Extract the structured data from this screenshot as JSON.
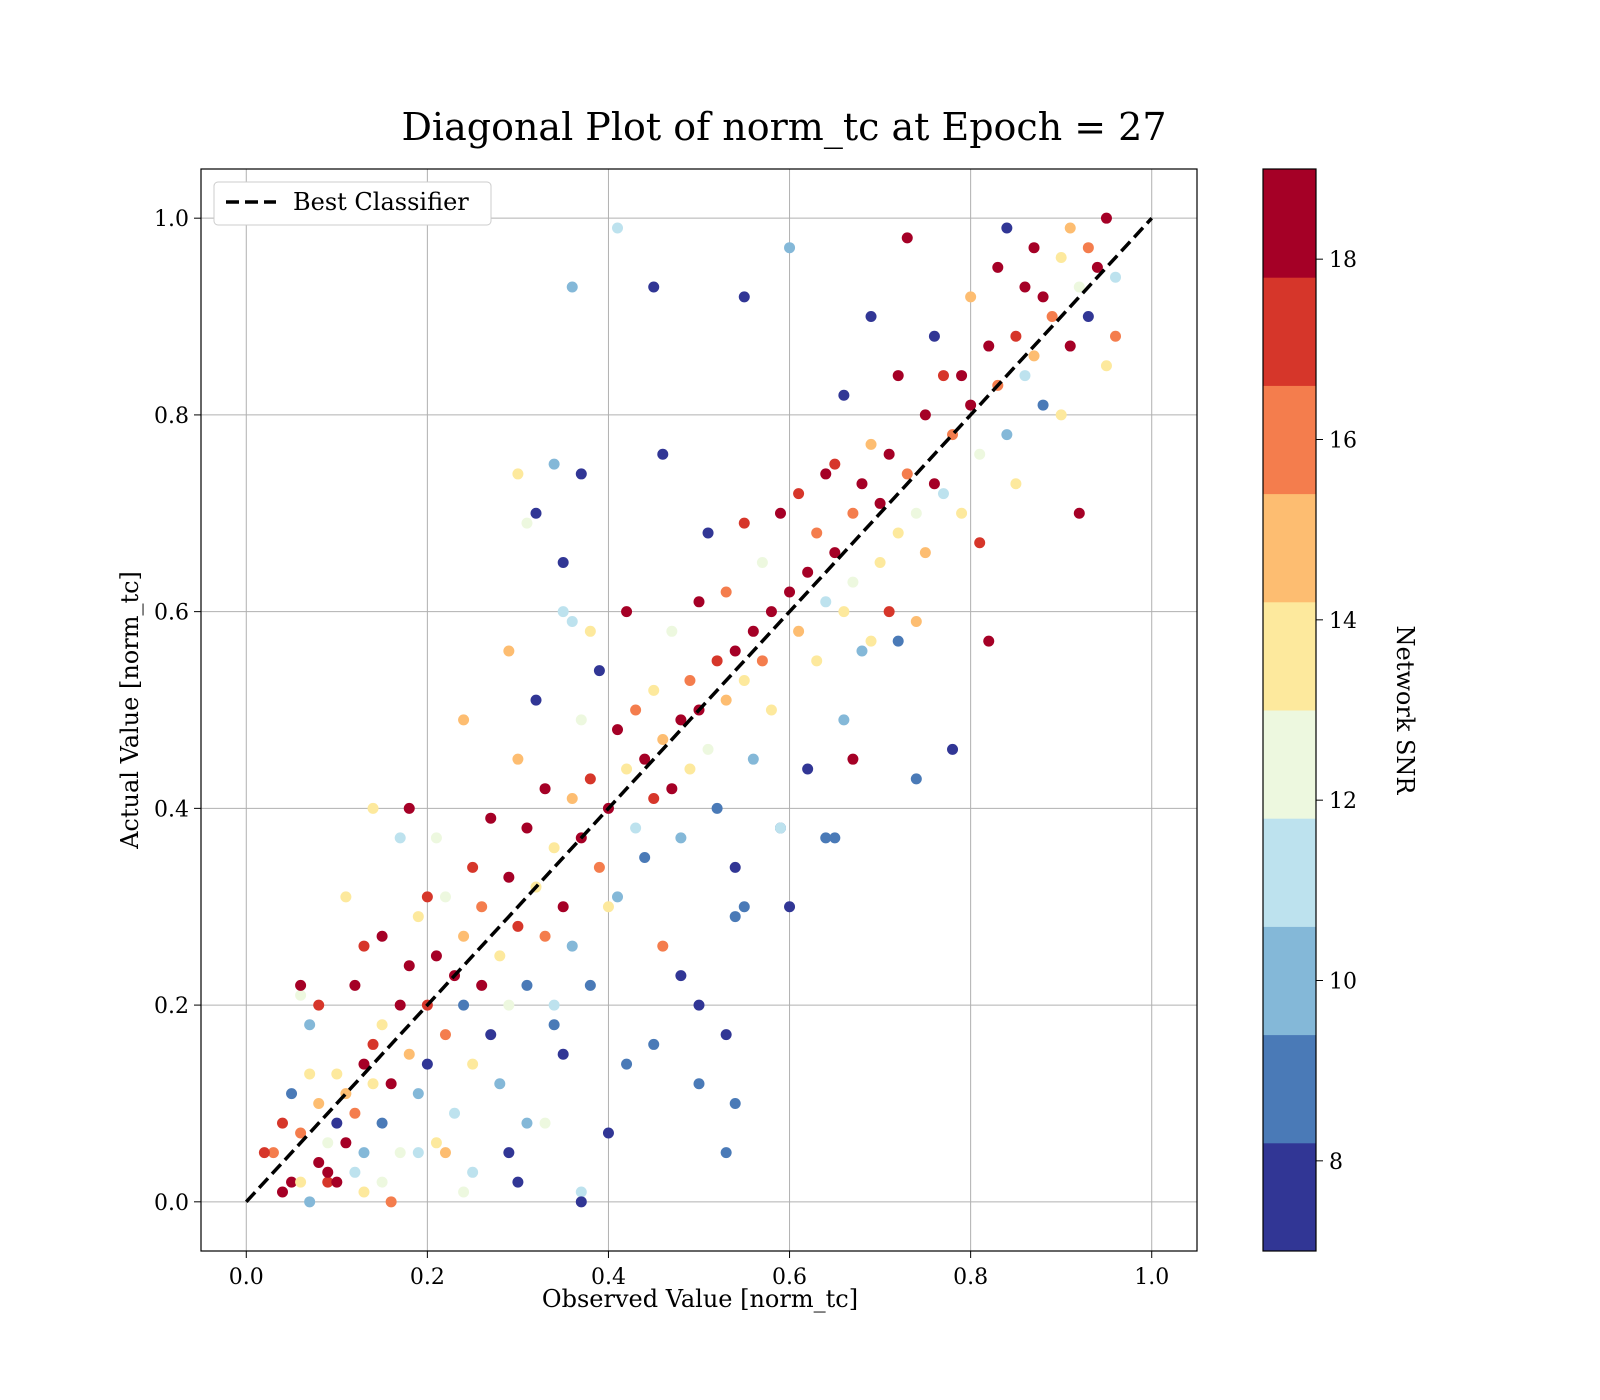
{
  "chart_data": {
    "type": "scatter",
    "title": "Diagonal Plot of norm_tc at Epoch = 27",
    "xlabel": "Observed Value [norm_tc]",
    "ylabel": "Actual Value [norm_tc]",
    "xlim": [
      -0.05,
      1.05
    ],
    "ylim": [
      -0.05,
      1.05
    ],
    "xticks": [
      "0.0",
      "0.2",
      "0.4",
      "0.6",
      "0.8",
      "1.0"
    ],
    "yticks": [
      "0.0",
      "0.2",
      "0.4",
      "0.6",
      "0.8",
      "1.0"
    ],
    "grid": true,
    "legend": {
      "placement": "upper-left",
      "entries": [
        "Best Classifier"
      ]
    },
    "reference_line": {
      "name": "Best Classifier",
      "x": [
        0,
        1
      ],
      "y": [
        0,
        1
      ],
      "style": "dashed",
      "color": "#000000"
    },
    "colorbar": {
      "label": "Network SNR",
      "range": [
        7,
        19
      ],
      "ticks": [
        "8",
        "10",
        "12",
        "14",
        "16",
        "18"
      ],
      "bins": 10,
      "colors": [
        "#313695",
        "#4a7ab7",
        "#84b8d8",
        "#bde2ee",
        "#edf8df",
        "#fde99d",
        "#fdbd71",
        "#f47d4d",
        "#d6362a",
        "#a50026"
      ]
    },
    "points_note_free": true,
    "points": [
      [
        0.03,
        0.05,
        16
      ],
      [
        0.04,
        0.08,
        17
      ],
      [
        0.05,
        0.02,
        18
      ],
      [
        0.05,
        0.11,
        9
      ],
      [
        0.06,
        0.07,
        16
      ],
      [
        0.06,
        0.02,
        13
      ],
      [
        0.07,
        0.0,
        10
      ],
      [
        0.07,
        0.13,
        14
      ],
      [
        0.08,
        0.04,
        19
      ],
      [
        0.08,
        0.1,
        15
      ],
      [
        0.09,
        0.06,
        12
      ],
      [
        0.09,
        0.02,
        17
      ],
      [
        0.1,
        0.08,
        8
      ],
      [
        0.1,
        0.13,
        14
      ],
      [
        0.11,
        0.06,
        18
      ],
      [
        0.11,
        0.11,
        15
      ],
      [
        0.12,
        0.03,
        11
      ],
      [
        0.12,
        0.09,
        16
      ],
      [
        0.13,
        0.14,
        19
      ],
      [
        0.13,
        0.05,
        10
      ],
      [
        0.14,
        0.12,
        13
      ],
      [
        0.14,
        0.16,
        17
      ],
      [
        0.15,
        0.08,
        9
      ],
      [
        0.15,
        0.18,
        14
      ],
      [
        0.16,
        0.12,
        18
      ],
      [
        0.16,
        0.0,
        16
      ],
      [
        0.17,
        0.05,
        12
      ],
      [
        0.17,
        0.2,
        19
      ],
      [
        0.18,
        0.15,
        15
      ],
      [
        0.18,
        0.24,
        18
      ],
      [
        0.19,
        0.11,
        10
      ],
      [
        0.19,
        0.29,
        13
      ],
      [
        0.2,
        0.2,
        17
      ],
      [
        0.2,
        0.14,
        8
      ],
      [
        0.21,
        0.25,
        19
      ],
      [
        0.21,
        0.06,
        14
      ],
      [
        0.22,
        0.17,
        16
      ],
      [
        0.22,
        0.31,
        12
      ],
      [
        0.23,
        0.23,
        18
      ],
      [
        0.23,
        0.09,
        11
      ],
      [
        0.24,
        0.27,
        15
      ],
      [
        0.24,
        0.2,
        9
      ],
      [
        0.25,
        0.34,
        17
      ],
      [
        0.25,
        0.14,
        13
      ],
      [
        0.26,
        0.22,
        19
      ],
      [
        0.26,
        0.3,
        16
      ],
      [
        0.27,
        0.17,
        8
      ],
      [
        0.27,
        0.39,
        18
      ],
      [
        0.28,
        0.25,
        14
      ],
      [
        0.28,
        0.12,
        10
      ],
      [
        0.29,
        0.33,
        19
      ],
      [
        0.29,
        0.2,
        12
      ],
      [
        0.3,
        0.28,
        17
      ],
      [
        0.3,
        0.45,
        15
      ],
      [
        0.31,
        0.22,
        9
      ],
      [
        0.31,
        0.38,
        18
      ],
      [
        0.32,
        0.32,
        13
      ],
      [
        0.32,
        0.51,
        8
      ],
      [
        0.33,
        0.27,
        16
      ],
      [
        0.33,
        0.42,
        19
      ],
      [
        0.34,
        0.2,
        11
      ],
      [
        0.34,
        0.36,
        14
      ],
      [
        0.35,
        0.3,
        18
      ],
      [
        0.35,
        0.65,
        8
      ],
      [
        0.36,
        0.41,
        15
      ],
      [
        0.36,
        0.26,
        10
      ],
      [
        0.37,
        0.37,
        19
      ],
      [
        0.37,
        0.49,
        12
      ],
      [
        0.38,
        0.22,
        9
      ],
      [
        0.38,
        0.43,
        17
      ],
      [
        0.39,
        0.34,
        16
      ],
      [
        0.39,
        0.54,
        8
      ],
      [
        0.4,
        0.4,
        19
      ],
      [
        0.4,
        0.3,
        13
      ],
      [
        0.41,
        0.48,
        18
      ],
      [
        0.41,
        0.31,
        10
      ],
      [
        0.42,
        0.44,
        14
      ],
      [
        0.42,
        0.6,
        19
      ],
      [
        0.43,
        0.38,
        11
      ],
      [
        0.43,
        0.5,
        16
      ],
      [
        0.44,
        0.45,
        19
      ],
      [
        0.44,
        0.35,
        9
      ],
      [
        0.45,
        0.41,
        17
      ],
      [
        0.45,
        0.52,
        13
      ],
      [
        0.46,
        0.47,
        15
      ],
      [
        0.46,
        0.76,
        8
      ],
      [
        0.47,
        0.42,
        18
      ],
      [
        0.47,
        0.58,
        12
      ],
      [
        0.48,
        0.49,
        19
      ],
      [
        0.48,
        0.37,
        10
      ],
      [
        0.49,
        0.53,
        16
      ],
      [
        0.49,
        0.44,
        14
      ],
      [
        0.5,
        0.5,
        18
      ],
      [
        0.5,
        0.61,
        19
      ],
      [
        0.51,
        0.46,
        12
      ],
      [
        0.51,
        0.68,
        8
      ],
      [
        0.52,
        0.55,
        17
      ],
      [
        0.52,
        0.4,
        9
      ],
      [
        0.53,
        0.51,
        15
      ],
      [
        0.53,
        0.62,
        16
      ],
      [
        0.54,
        0.56,
        19
      ],
      [
        0.54,
        0.34,
        8
      ],
      [
        0.55,
        0.53,
        13
      ],
      [
        0.55,
        0.69,
        17
      ],
      [
        0.56,
        0.58,
        18
      ],
      [
        0.56,
        0.45,
        10
      ],
      [
        0.57,
        0.55,
        16
      ],
      [
        0.57,
        0.65,
        12
      ],
      [
        0.58,
        0.6,
        19
      ],
      [
        0.58,
        0.5,
        14
      ],
      [
        0.59,
        0.7,
        19
      ],
      [
        0.59,
        0.38,
        9
      ],
      [
        0.6,
        0.62,
        18
      ],
      [
        0.6,
        0.97,
        10
      ],
      [
        0.61,
        0.58,
        15
      ],
      [
        0.61,
        0.72,
        17
      ],
      [
        0.62,
        0.64,
        19
      ],
      [
        0.62,
        0.44,
        8
      ],
      [
        0.63,
        0.68,
        16
      ],
      [
        0.63,
        0.55,
        13
      ],
      [
        0.64,
        0.74,
        19
      ],
      [
        0.64,
        0.61,
        11
      ],
      [
        0.65,
        0.66,
        18
      ],
      [
        0.65,
        0.75,
        17
      ],
      [
        0.66,
        0.6,
        14
      ],
      [
        0.66,
        0.82,
        8
      ],
      [
        0.67,
        0.7,
        16
      ],
      [
        0.67,
        0.63,
        12
      ],
      [
        0.68,
        0.73,
        19
      ],
      [
        0.68,
        0.56,
        10
      ],
      [
        0.69,
        0.77,
        15
      ],
      [
        0.69,
        0.9,
        8
      ],
      [
        0.7,
        0.71,
        18
      ],
      [
        0.7,
        0.65,
        14
      ],
      [
        0.71,
        0.76,
        19
      ],
      [
        0.71,
        0.6,
        17
      ],
      [
        0.72,
        0.68,
        13
      ],
      [
        0.72,
        0.84,
        19
      ],
      [
        0.73,
        0.74,
        16
      ],
      [
        0.73,
        0.98,
        19
      ],
      [
        0.74,
        0.7,
        12
      ],
      [
        0.74,
        0.43,
        9
      ],
      [
        0.75,
        0.8,
        18
      ],
      [
        0.75,
        0.66,
        15
      ],
      [
        0.76,
        0.73,
        19
      ],
      [
        0.76,
        0.88,
        8
      ],
      [
        0.77,
        0.72,
        11
      ],
      [
        0.77,
        0.84,
        17
      ],
      [
        0.78,
        0.78,
        16
      ],
      [
        0.78,
        0.46,
        8
      ],
      [
        0.79,
        0.84,
        19
      ],
      [
        0.79,
        0.7,
        13
      ],
      [
        0.8,
        0.81,
        18
      ],
      [
        0.8,
        0.92,
        15
      ],
      [
        0.81,
        0.76,
        12
      ],
      [
        0.81,
        0.67,
        17
      ],
      [
        0.82,
        0.87,
        19
      ],
      [
        0.82,
        0.57,
        18
      ],
      [
        0.83,
        0.83,
        16
      ],
      [
        0.83,
        0.95,
        19
      ],
      [
        0.84,
        0.78,
        10
      ],
      [
        0.84,
        0.99,
        8
      ],
      [
        0.85,
        0.88,
        17
      ],
      [
        0.85,
        0.73,
        14
      ],
      [
        0.86,
        0.93,
        19
      ],
      [
        0.86,
        0.84,
        11
      ],
      [
        0.87,
        0.86,
        15
      ],
      [
        0.87,
        0.97,
        18
      ],
      [
        0.88,
        0.81,
        9
      ],
      [
        0.88,
        0.92,
        19
      ],
      [
        0.89,
        0.9,
        16
      ],
      [
        0.9,
        0.96,
        13
      ],
      [
        0.9,
        0.8,
        14
      ],
      [
        0.91,
        0.87,
        18
      ],
      [
        0.91,
        0.99,
        15
      ],
      [
        0.92,
        0.93,
        12
      ],
      [
        0.92,
        0.7,
        19
      ],
      [
        0.93,
        0.9,
        8
      ],
      [
        0.93,
        0.97,
        16
      ],
      [
        0.94,
        0.95,
        19
      ],
      [
        0.95,
        1.0,
        18
      ],
      [
        0.95,
        0.85,
        14
      ],
      [
        0.96,
        0.94,
        11
      ],
      [
        0.96,
        0.88,
        16
      ],
      [
        0.41,
        0.99,
        11
      ],
      [
        0.36,
        0.93,
        10
      ],
      [
        0.45,
        0.93,
        8
      ],
      [
        0.55,
        0.92,
        8
      ],
      [
        0.3,
        0.74,
        13
      ],
      [
        0.34,
        0.75,
        10
      ],
      [
        0.37,
        0.74,
        8
      ],
      [
        0.31,
        0.69,
        12
      ],
      [
        0.32,
        0.7,
        8
      ],
      [
        0.35,
        0.6,
        11
      ],
      [
        0.36,
        0.59,
        11
      ],
      [
        0.29,
        0.56,
        15
      ],
      [
        0.38,
        0.58,
        14
      ],
      [
        0.4,
        0.07,
        8
      ],
      [
        0.37,
        0.01,
        11
      ],
      [
        0.37,
        0.0,
        8
      ],
      [
        0.3,
        0.02,
        8
      ],
      [
        0.29,
        0.05,
        8
      ],
      [
        0.31,
        0.08,
        10
      ],
      [
        0.33,
        0.08,
        12
      ],
      [
        0.35,
        0.15,
        8
      ],
      [
        0.34,
        0.18,
        9
      ],
      [
        0.42,
        0.14,
        9
      ],
      [
        0.45,
        0.16,
        9
      ],
      [
        0.5,
        0.12,
        9
      ],
      [
        0.53,
        0.05,
        9
      ],
      [
        0.54,
        0.1,
        9
      ],
      [
        0.53,
        0.17,
        8
      ],
      [
        0.5,
        0.2,
        8
      ],
      [
        0.48,
        0.23,
        8
      ],
      [
        0.46,
        0.26,
        16
      ],
      [
        0.54,
        0.29,
        9
      ],
      [
        0.55,
        0.3,
        9
      ],
      [
        0.6,
        0.3,
        8
      ],
      [
        0.59,
        0.38,
        11
      ],
      [
        0.65,
        0.37,
        9
      ],
      [
        0.64,
        0.37,
        9
      ],
      [
        0.66,
        0.49,
        10
      ],
      [
        0.67,
        0.45,
        19
      ],
      [
        0.72,
        0.57,
        9
      ],
      [
        0.69,
        0.57,
        14
      ],
      [
        0.74,
        0.59,
        15
      ],
      [
        0.06,
        0.21,
        12
      ],
      [
        0.07,
        0.18,
        10
      ],
      [
        0.08,
        0.2,
        17
      ],
      [
        0.06,
        0.22,
        18
      ],
      [
        0.11,
        0.31,
        14
      ],
      [
        0.14,
        0.4,
        14
      ],
      [
        0.18,
        0.4,
        18
      ],
      [
        0.17,
        0.37,
        11
      ],
      [
        0.21,
        0.37,
        12
      ],
      [
        0.24,
        0.49,
        15
      ],
      [
        0.02,
        0.05,
        17
      ],
      [
        0.04,
        0.01,
        19
      ],
      [
        0.09,
        0.03,
        19
      ],
      [
        0.1,
        0.02,
        18
      ],
      [
        0.13,
        0.01,
        14
      ],
      [
        0.15,
        0.02,
        12
      ],
      [
        0.19,
        0.05,
        11
      ],
      [
        0.22,
        0.05,
        15
      ],
      [
        0.24,
        0.01,
        12
      ],
      [
        0.25,
        0.03,
        11
      ],
      [
        0.12,
        0.22,
        19
      ],
      [
        0.15,
        0.27,
        18
      ],
      [
        0.13,
        0.26,
        17
      ],
      [
        0.2,
        0.31,
        17
      ]
    ]
  }
}
